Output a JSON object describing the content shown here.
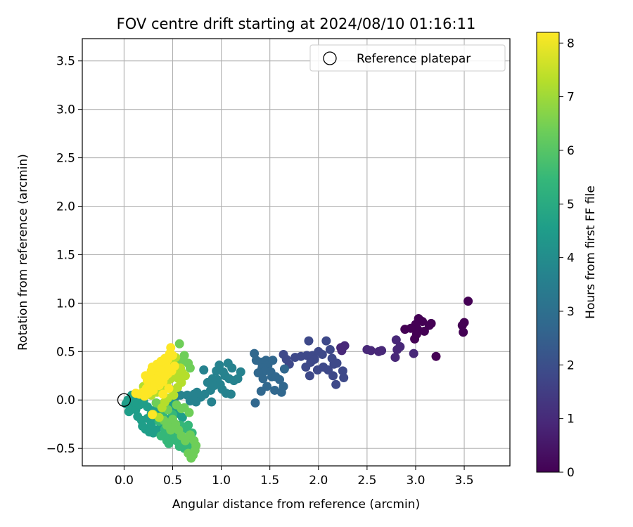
{
  "chart_data": {
    "type": "scatter",
    "title": "FOV centre drift starting at 2024/08/10 01:16:11",
    "xlabel": "Angular distance from reference (arcmin)",
    "ylabel": "Rotation from reference (arcmin)",
    "xlim": [
      -0.43,
      3.97
    ],
    "ylim": [
      -0.68,
      3.73
    ],
    "xticks": [
      0.0,
      0.5,
      1.0,
      1.5,
      2.0,
      2.5,
      3.0,
      3.5
    ],
    "xtick_labels": [
      "0.0",
      "0.5",
      "1.0",
      "1.5",
      "2.0",
      "2.5",
      "3.0",
      "3.5"
    ],
    "yticks": [
      -0.5,
      0.0,
      0.5,
      1.0,
      1.5,
      2.0,
      2.5,
      3.0,
      3.5
    ],
    "ytick_labels": [
      "−0.5",
      "0.0",
      "0.5",
      "1.0",
      "1.5",
      "2.0",
      "2.5",
      "3.0",
      "3.5"
    ],
    "grid": true,
    "legend": {
      "position": "top-right",
      "entries": [
        {
          "label": "Reference platepar",
          "marker": "open-circle"
        }
      ]
    },
    "reference_point": {
      "x": 0.0,
      "y": 0.0
    },
    "colorbar": {
      "label": "Hours from first FF file",
      "range": [
        0,
        8.2
      ],
      "ticks": [
        0,
        1,
        2,
        3,
        4,
        5,
        6,
        7,
        8
      ],
      "colormap": "viridis",
      "colors": [
        "#440154",
        "#482878",
        "#3e4989",
        "#31688e",
        "#26828e",
        "#1f9e89",
        "#35b779",
        "#6ece58",
        "#b5de2b",
        "#fde725"
      ]
    },
    "point_layers": [
      {
        "name": "",
        "points": [
          [
            3.54,
            1.02
          ],
          [
            3.5,
            0.8
          ],
          [
            3.48,
            0.77
          ],
          [
            3.49,
            0.7
          ],
          [
            3.21,
            0.45
          ],
          [
            3.05,
            0.82
          ],
          [
            3.07,
            0.81
          ],
          [
            3.03,
            0.84
          ],
          [
            3.0,
            0.78
          ],
          [
            3.02,
            0.73
          ],
          [
            3.09,
            0.71
          ],
          [
            2.95,
            0.74
          ],
          [
            3.01,
            0.68
          ],
          [
            2.99,
            0.63
          ],
          [
            3.16,
            0.79
          ],
          [
            3.14,
            0.77
          ],
          [
            2.89,
            0.73
          ]
        ]
      },
      {
        "name": "",
        "points": [
          [
            2.8,
            0.62
          ],
          [
            2.79,
            0.44
          ],
          [
            2.84,
            0.55
          ],
          [
            2.81,
            0.52
          ],
          [
            2.98,
            0.48
          ],
          [
            2.5,
            0.52
          ],
          [
            2.54,
            0.51
          ],
          [
            2.62,
            0.5
          ],
          [
            2.65,
            0.51
          ],
          [
            2.23,
            0.54
          ],
          [
            2.24,
            0.51
          ],
          [
            2.27,
            0.56
          ]
        ]
      },
      {
        "name": "",
        "points": [
          [
            1.9,
            0.61
          ],
          [
            2.08,
            0.61
          ],
          [
            1.88,
            0.46
          ],
          [
            1.94,
            0.46
          ],
          [
            2.0,
            0.5
          ],
          [
            1.96,
            0.42
          ],
          [
            2.04,
            0.47
          ],
          [
            2.12,
            0.52
          ],
          [
            2.14,
            0.43
          ],
          [
            2.16,
            0.37
          ],
          [
            2.19,
            0.38
          ],
          [
            1.82,
            0.45
          ],
          [
            1.76,
            0.44
          ],
          [
            1.7,
            0.37
          ],
          [
            1.64,
            0.47
          ],
          [
            1.67,
            0.42
          ],
          [
            1.92,
            0.39
          ],
          [
            1.99,
            0.31
          ],
          [
            2.05,
            0.34
          ],
          [
            1.87,
            0.34
          ],
          [
            1.91,
            0.25
          ],
          [
            2.1,
            0.31
          ],
          [
            2.15,
            0.25
          ],
          [
            2.18,
            0.16
          ],
          [
            2.25,
            0.3
          ],
          [
            2.26,
            0.23
          ]
        ]
      },
      {
        "name": "",
        "points": [
          [
            1.34,
            0.48
          ],
          [
            1.36,
            0.41
          ],
          [
            1.41,
            0.39
          ],
          [
            1.46,
            0.41
          ],
          [
            1.48,
            0.36
          ],
          [
            1.53,
            0.41
          ],
          [
            1.42,
            0.33
          ],
          [
            1.45,
            0.3
          ],
          [
            1.51,
            0.29
          ],
          [
            1.52,
            0.24
          ],
          [
            1.56,
            0.24
          ],
          [
            1.6,
            0.21
          ],
          [
            1.65,
            0.32
          ],
          [
            1.38,
            0.28
          ],
          [
            1.43,
            0.22
          ],
          [
            1.47,
            0.14
          ],
          [
            1.41,
            0.09
          ],
          [
            1.55,
            0.1
          ],
          [
            1.62,
            0.08
          ],
          [
            1.64,
            0.14
          ],
          [
            1.35,
            -0.03
          ]
        ]
      },
      {
        "name": "",
        "points": [
          [
            0.98,
            0.36
          ],
          [
            1.07,
            0.38
          ],
          [
            1.11,
            0.33
          ],
          [
            0.95,
            0.3
          ],
          [
            1.02,
            0.29
          ],
          [
            1.04,
            0.25
          ],
          [
            1.08,
            0.22
          ],
          [
            1.13,
            0.2
          ],
          [
            1.17,
            0.22
          ],
          [
            1.2,
            0.29
          ],
          [
            0.96,
            0.21
          ],
          [
            0.91,
            0.22
          ],
          [
            0.86,
            0.18
          ],
          [
            0.82,
            0.31
          ],
          [
            0.89,
            0.1
          ],
          [
            0.83,
            0.06
          ],
          [
            0.79,
            0.03
          ],
          [
            0.93,
            0.15
          ],
          [
            1.01,
            0.11
          ],
          [
            1.05,
            0.07
          ],
          [
            1.1,
            0.06
          ],
          [
            0.99,
            0.16
          ],
          [
            0.75,
            0.08
          ],
          [
            0.72,
            0.06
          ],
          [
            0.65,
            0.05
          ],
          [
            0.58,
            0.05
          ],
          [
            0.68,
            -0.01
          ],
          [
            0.74,
            -0.02
          ],
          [
            0.9,
            -0.02
          ],
          [
            0.52,
            0.02
          ]
        ]
      },
      {
        "name": "",
        "points": [
          [
            0.04,
            0.0
          ],
          [
            0.02,
            -0.04
          ],
          [
            0.06,
            -0.06
          ],
          [
            0.05,
            -0.12
          ],
          [
            0.09,
            -0.08
          ],
          [
            0.12,
            -0.1
          ],
          [
            0.14,
            -0.17
          ],
          [
            0.18,
            -0.21
          ],
          [
            0.19,
            -0.27
          ],
          [
            0.22,
            -0.3
          ],
          [
            0.26,
            -0.33
          ],
          [
            0.3,
            -0.34
          ],
          [
            0.33,
            -0.31
          ],
          [
            0.38,
            -0.27
          ],
          [
            0.42,
            -0.22
          ],
          [
            0.46,
            -0.2
          ],
          [
            0.5,
            -0.24
          ],
          [
            0.24,
            -0.19
          ],
          [
            0.28,
            -0.14
          ],
          [
            0.32,
            -0.1
          ],
          [
            0.36,
            -0.06
          ],
          [
            0.4,
            -0.12
          ],
          [
            0.44,
            -0.08
          ],
          [
            0.48,
            -0.03
          ],
          [
            0.52,
            -0.09
          ],
          [
            0.56,
            -0.14
          ],
          [
            0.6,
            -0.18
          ],
          [
            0.16,
            -0.05
          ],
          [
            0.2,
            -0.01
          ],
          [
            0.24,
            -0.07
          ],
          [
            0.12,
            0.02
          ],
          [
            0.08,
            0.05
          ],
          [
            0.3,
            -0.2
          ],
          [
            0.35,
            -0.16
          ],
          [
            0.1,
            -0.02
          ],
          [
            0.28,
            -0.25
          ]
        ]
      },
      {
        "name": "",
        "points": [
          [
            0.42,
            -0.3
          ],
          [
            0.46,
            -0.35
          ],
          [
            0.5,
            -0.38
          ],
          [
            0.54,
            -0.42
          ],
          [
            0.58,
            -0.36
          ],
          [
            0.62,
            -0.3
          ],
          [
            0.66,
            -0.26
          ],
          [
            0.7,
            -0.34
          ],
          [
            0.6,
            -0.44
          ],
          [
            0.55,
            -0.29
          ],
          [
            0.48,
            -0.27
          ],
          [
            0.44,
            -0.42
          ],
          [
            0.38,
            -0.37
          ],
          [
            0.52,
            -0.32
          ],
          [
            0.64,
            -0.4
          ],
          [
            0.68,
            -0.48
          ],
          [
            0.72,
            -0.45
          ],
          [
            0.57,
            -0.48
          ],
          [
            0.36,
            -0.22
          ],
          [
            0.4,
            -0.16
          ],
          [
            0.5,
            -0.15
          ],
          [
            0.58,
            -0.26
          ],
          [
            0.46,
            -0.45
          ],
          [
            0.62,
            -0.5
          ]
        ]
      },
      {
        "name": "",
        "points": [
          [
            0.57,
            0.58
          ],
          [
            0.62,
            0.46
          ],
          [
            0.66,
            0.38
          ],
          [
            0.68,
            0.33
          ],
          [
            0.6,
            0.4
          ],
          [
            0.55,
            0.36
          ],
          [
            0.5,
            0.32
          ],
          [
            0.63,
            -0.42
          ],
          [
            0.66,
            -0.55
          ],
          [
            0.69,
            -0.6
          ],
          [
            0.71,
            -0.57
          ],
          [
            0.74,
            -0.47
          ],
          [
            0.73,
            -0.52
          ],
          [
            0.67,
            -0.13
          ],
          [
            0.5,
            -0.2
          ],
          [
            0.53,
            -0.25
          ],
          [
            0.56,
            -0.31
          ],
          [
            0.59,
            -0.37
          ],
          [
            0.48,
            -0.31
          ],
          [
            0.44,
            -0.26
          ],
          [
            0.41,
            -0.21
          ],
          [
            0.37,
            -0.05
          ],
          [
            0.33,
            -0.03
          ],
          [
            0.45,
            -0.1
          ],
          [
            0.54,
            -0.05
          ],
          [
            0.59,
            -0.09
          ],
          [
            0.62,
            -0.08
          ],
          [
            0.68,
            -0.36
          ],
          [
            0.72,
            -0.42
          ]
        ]
      },
      {
        "name": "",
        "points": [
          [
            0.5,
            0.4
          ],
          [
            0.53,
            0.44
          ],
          [
            0.46,
            0.36
          ],
          [
            0.42,
            0.3
          ],
          [
            0.38,
            0.26
          ],
          [
            0.35,
            0.21
          ],
          [
            0.3,
            0.18
          ],
          [
            0.44,
            0.17
          ],
          [
            0.48,
            0.22
          ],
          [
            0.52,
            0.27
          ],
          [
            0.56,
            0.22
          ],
          [
            0.59,
            0.18
          ],
          [
            0.55,
            0.13
          ],
          [
            0.5,
            0.1
          ],
          [
            0.4,
            0.12
          ],
          [
            0.34,
            0.08
          ],
          [
            0.28,
            0.05
          ],
          [
            0.45,
            0.02
          ],
          [
            0.51,
            0.05
          ],
          [
            0.42,
            -0.02
          ],
          [
            0.3,
            -0.15
          ],
          [
            0.36,
            -0.18
          ],
          [
            0.39,
            -0.08
          ],
          [
            0.32,
            0.12
          ],
          [
            0.26,
            0.1
          ],
          [
            0.6,
            0.28
          ],
          [
            0.63,
            0.25
          ],
          [
            0.58,
            0.33
          ],
          [
            0.24,
            0.2
          ],
          [
            0.2,
            0.14
          ]
        ]
      },
      {
        "name": "",
        "points": [
          [
            0.48,
            0.54
          ],
          [
            0.47,
            0.48
          ],
          [
            0.45,
            0.42
          ],
          [
            0.43,
            0.38
          ],
          [
            0.4,
            0.35
          ],
          [
            0.36,
            0.33
          ],
          [
            0.33,
            0.3
          ],
          [
            0.3,
            0.27
          ],
          [
            0.27,
            0.24
          ],
          [
            0.24,
            0.2
          ],
          [
            0.29,
            0.34
          ],
          [
            0.34,
            0.37
          ],
          [
            0.38,
            0.4
          ],
          [
            0.42,
            0.43
          ],
          [
            0.5,
            0.46
          ],
          [
            0.44,
            0.33
          ],
          [
            0.39,
            0.3
          ],
          [
            0.35,
            0.25
          ],
          [
            0.31,
            0.22
          ],
          [
            0.27,
            0.18
          ],
          [
            0.23,
            0.12
          ],
          [
            0.19,
            0.08
          ],
          [
            0.16,
            0.06
          ],
          [
            0.12,
            0.07
          ],
          [
            0.36,
            0.15
          ],
          [
            0.4,
            0.19
          ],
          [
            0.45,
            0.27
          ],
          [
            0.49,
            0.3
          ],
          [
            0.52,
            0.35
          ],
          [
            0.28,
            0.3
          ],
          [
            0.22,
            0.25
          ],
          [
            0.26,
            0.14
          ],
          [
            0.32,
            0.16
          ],
          [
            0.37,
            0.2
          ],
          [
            0.42,
            0.24
          ],
          [
            0.25,
            0.07
          ],
          [
            0.3,
            0.1
          ],
          [
            0.21,
            0.04
          ],
          [
            0.29,
            -0.15
          ],
          [
            0.4,
            0.06
          ],
          [
            0.46,
            0.12
          ]
        ]
      }
    ]
  }
}
